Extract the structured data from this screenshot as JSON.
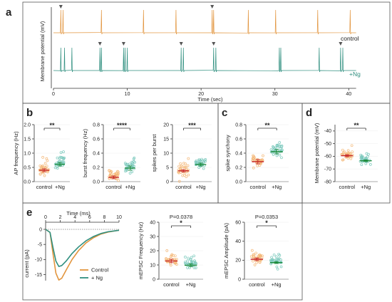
{
  "colors": {
    "control": "#e2953e",
    "ng": "#2f8f7f",
    "ng_light": "#7cc9bd",
    "control_light": "#f4b97a",
    "mean_control": "#c62828",
    "mean_ng": "#1b8a3a"
  },
  "panel_a": {
    "letter": "a",
    "ylabel": "Membrane potential (mV)",
    "xlabel": "Time (sec)",
    "xticks": [
      "0",
      "10",
      "20",
      "30",
      "40"
    ],
    "trace_control_label": "control",
    "trace_ng_label": "+Ng"
  },
  "panel_b": {
    "letter": "b"
  },
  "panel_c": {
    "letter": "c"
  },
  "panel_d": {
    "letter": "d"
  },
  "panel_e": {
    "letter": "e",
    "time_label": "Time (ms)",
    "time_ticks": [
      "0",
      "2",
      "4",
      "6",
      "8",
      "10"
    ],
    "current_ylabel": "current (pA)",
    "current_yticks": [
      "0",
      "-5",
      "-10",
      "-15"
    ],
    "legend_control": "Control",
    "legend_ng": "+ Ng"
  },
  "chart_data": [
    {
      "type": "line",
      "panel": "a",
      "title": "",
      "xlabel": "Time (sec)",
      "ylabel": "Membrane potential (mV)",
      "xlim": [
        0,
        42
      ],
      "series": [
        {
          "name": "control",
          "spike_times": [
            1.0,
            1.3,
            6.5,
            12.2,
            16.6,
            21.5,
            21.7,
            26.4,
            30.1,
            35.8,
            40.2
          ]
        },
        {
          "name": "+Ng",
          "spike_times": [
            1.0,
            1.5,
            2.5,
            6.3,
            6.5,
            9.5,
            9.7,
            10.0,
            17.3,
            17.6,
            21.7,
            22.0,
            30.6,
            30.8,
            36.0,
            38.9,
            39.2
          ]
        }
      ],
      "arrow_times_control": [
        1.0,
        21.5
      ],
      "arrow_times_ng": [
        6.3,
        9.5,
        17.3,
        21.7,
        38.9
      ]
    },
    {
      "type": "scatter",
      "panel": "b1",
      "ylabel": "AP frequency (Hz)",
      "categories": [
        "control",
        "+Ng"
      ],
      "ylim": [
        0,
        2.0
      ],
      "yticks": [
        "0.0",
        "0.5",
        "1.0",
        "1.5",
        "2.0"
      ],
      "means": [
        0.4,
        0.61
      ],
      "sem": [
        0.05,
        0.06
      ],
      "significance": "**"
    },
    {
      "type": "scatter",
      "panel": "b2",
      "ylabel": "burst frequency (Hz)",
      "categories": [
        "control",
        "+Ng"
      ],
      "ylim": [
        0,
        0.8
      ],
      "yticks": [
        "0.0",
        "0.2",
        "0.4",
        "0.6",
        "0.8"
      ],
      "means": [
        0.06,
        0.19
      ],
      "sem": [
        0.02,
        0.03
      ],
      "significance": "****"
    },
    {
      "type": "scatter",
      "panel": "b3",
      "ylabel": "spikes per burst",
      "categories": [
        "control",
        "+Ng"
      ],
      "ylim": [
        0,
        20
      ],
      "yticks": [
        "0",
        "5",
        "10",
        "15",
        "20"
      ],
      "means": [
        3.8,
        6.0
      ],
      "sem": [
        0.4,
        0.5
      ],
      "significance": "***"
    },
    {
      "type": "scatter",
      "panel": "c",
      "ylabel": "spike synchony",
      "categories": [
        "control",
        "+Ng"
      ],
      "ylim": [
        0,
        0.8
      ],
      "yticks": [
        "0.0",
        "0.2",
        "0.4",
        "0.6",
        "0.8"
      ],
      "means": [
        0.28,
        0.42
      ],
      "sem": [
        0.03,
        0.03
      ],
      "significance": "**"
    },
    {
      "type": "scatter",
      "panel": "d",
      "ylabel": "Membrane potential (mV)",
      "categories": [
        "control",
        "+Ng"
      ],
      "ylim": [
        -80,
        -35
      ],
      "yticks": [
        "-40",
        "-50",
        "-60",
        "-70",
        "-80"
      ],
      "means": [
        -59.5,
        -63.5
      ],
      "sem": [
        0.8,
        0.7
      ],
      "significance": "**"
    },
    {
      "type": "line",
      "panel": "e1",
      "xlabel": "Time (ms)",
      "ylabel": "current (pA)",
      "xlim": [
        0,
        10
      ],
      "ylim": [
        -17,
        0
      ],
      "series": [
        {
          "name": "Control",
          "x": [
            0,
            0.6,
            1.0,
            1.4,
            1.8,
            2.2,
            2.8,
            3.6,
            4.5,
            5.5,
            6.5,
            7.5,
            8.5,
            10
          ],
          "y": [
            0,
            -1,
            -8,
            -14.5,
            -16.8,
            -16.2,
            -13.5,
            -10,
            -7,
            -4.5,
            -2.8,
            -1.6,
            -0.9,
            -0.3
          ]
        },
        {
          "name": "+ Ng",
          "x": [
            0,
            0.6,
            1.0,
            1.4,
            1.8,
            2.2,
            2.8,
            3.6,
            4.5,
            5.5,
            6.5,
            7.5,
            8.5,
            10
          ],
          "y": [
            0,
            -1,
            -6,
            -10.5,
            -12.3,
            -12,
            -10.5,
            -8,
            -5.8,
            -3.8,
            -2.4,
            -1.4,
            -0.8,
            -0.3
          ]
        }
      ]
    },
    {
      "type": "scatter",
      "panel": "e2",
      "ylabel": "mEPSC  Frequency (Hz)",
      "categories": [
        "control",
        "+Ng"
      ],
      "ylim": [
        0,
        40
      ],
      "yticks": [
        "0",
        "10",
        "20",
        "30",
        "40"
      ],
      "means": [
        12.8,
        9.8
      ],
      "sem": [
        1.2,
        1.0
      ],
      "significance": "*",
      "p_label": "P=0.0378"
    },
    {
      "type": "scatter",
      "panel": "e3",
      "ylabel": "mEPSC Amplitude (pA)",
      "categories": [
        "control",
        "+Ng"
      ],
      "ylim": [
        0,
        60
      ],
      "yticks": [
        "0",
        "20",
        "40",
        "60"
      ],
      "means": [
        21.0,
        17.5
      ],
      "sem": [
        1.4,
        1.0
      ],
      "significance": "*",
      "p_label": "P=0.0353"
    }
  ]
}
